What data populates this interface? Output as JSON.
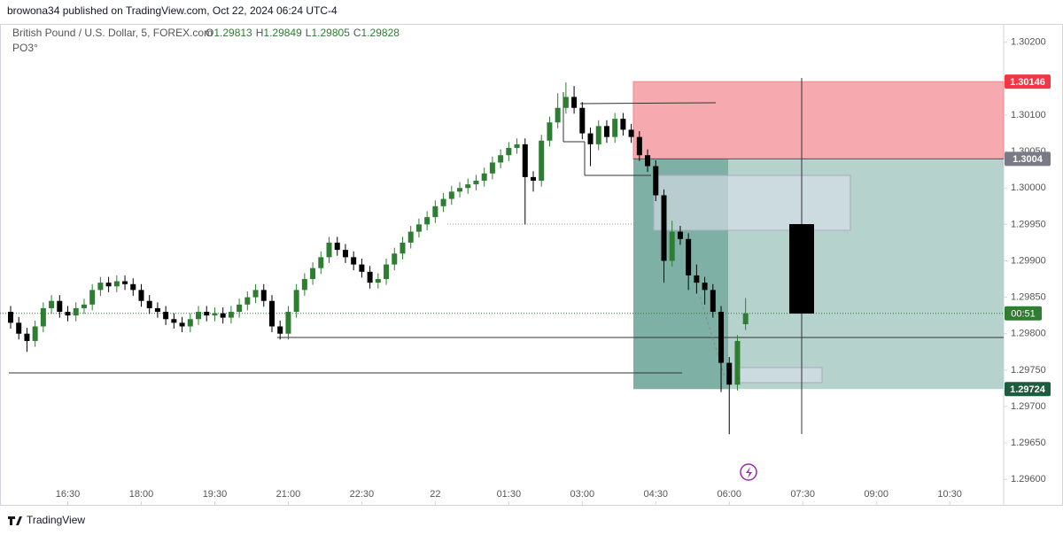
{
  "header": {
    "publisher": "browona34 published on TradingView.com, Oct 22, 2024 06:24 UTC-4",
    "brand": "TradingView"
  },
  "chart_data": {
    "type": "candlestick",
    "title": "British Pound / U.S. Dollar, 5, FOREX.com",
    "indicator": "PO3°",
    "ohlc_labels": [
      "O",
      "H",
      "L",
      "C"
    ],
    "countdown": "00:51",
    "up_color": "#2e7d32",
    "down_color": "#000000",
    "x": [
      0,
      1,
      2,
      3,
      4,
      5,
      6,
      7,
      8,
      9,
      10,
      11,
      12,
      13,
      14,
      15,
      16,
      17,
      18,
      19,
      20,
      21,
      22,
      23,
      24,
      25,
      26,
      27,
      28,
      29,
      30,
      31,
      32,
      33,
      34,
      35,
      36,
      37,
      38,
      39,
      40,
      41,
      42,
      43,
      44,
      45,
      46,
      47,
      48,
      49,
      50,
      51,
      52,
      53,
      54,
      55,
      56,
      57,
      58,
      59,
      60,
      61,
      62,
      63,
      64,
      65,
      66,
      67,
      68,
      69,
      70,
      71,
      72,
      73,
      74,
      75,
      76,
      77,
      78,
      79,
      80,
      81,
      82,
      83,
      84,
      85,
      86,
      87,
      88,
      89,
      90
    ],
    "open": [
      1.2983,
      1.29815,
      1.298,
      1.2979,
      1.2981,
      1.29835,
      1.29845,
      1.2983,
      1.29825,
      1.29835,
      1.2984,
      1.2986,
      1.2987,
      1.29865,
      1.29872,
      1.29868,
      1.2986,
      1.29845,
      1.29835,
      1.2983,
      1.2982,
      1.29815,
      1.2981,
      1.2982,
      1.2983,
      1.29825,
      1.29828,
      1.29822,
      1.2983,
      1.2984,
      1.2985,
      1.2986,
      1.29845,
      1.2981,
      1.298,
      1.2983,
      1.2986,
      1.29875,
      1.2989,
      1.29905,
      1.29925,
      1.29915,
      1.29905,
      1.29895,
      1.29885,
      1.2987,
      1.29875,
      1.29895,
      1.2991,
      1.29925,
      1.2994,
      1.2995,
      1.2996,
      1.29975,
      1.29985,
      1.29995,
      1.3,
      1.30005,
      1.3001,
      1.3002,
      1.30035,
      1.30045,
      1.30055,
      1.3006,
      1.30015,
      1.3001,
      1.30065,
      1.3009,
      1.3011,
      1.30125,
      1.3011,
      1.30075,
      1.3006,
      1.30085,
      1.3007,
      1.30095,
      1.3008,
      1.3007,
      1.30045,
      1.3003,
      1.2999,
      1.299,
      1.2994,
      1.2993,
      1.2988,
      1.2987,
      1.2986,
      1.2983,
      1.2976,
      1.2973,
      1.29813
    ],
    "high": [
      1.29838,
      1.29823,
      1.29808,
      1.29818,
      1.29843,
      1.29853,
      1.29853,
      1.29838,
      1.29843,
      1.29848,
      1.29868,
      1.29878,
      1.29878,
      1.2988,
      1.2988,
      1.29876,
      1.29868,
      1.29853,
      1.29843,
      1.29838,
      1.29828,
      1.29823,
      1.29828,
      1.29838,
      1.29838,
      1.29836,
      1.29836,
      1.29838,
      1.29848,
      1.29858,
      1.29868,
      1.29868,
      1.29853,
      1.29818,
      1.29838,
      1.29868,
      1.29883,
      1.29898,
      1.29913,
      1.29933,
      1.29933,
      1.29923,
      1.29913,
      1.29903,
      1.29893,
      1.29883,
      1.29903,
      1.29918,
      1.29933,
      1.29948,
      1.29958,
      1.29968,
      1.29983,
      1.29993,
      1.30003,
      1.30008,
      1.30013,
      1.30018,
      1.30028,
      1.30043,
      1.30053,
      1.30063,
      1.30068,
      1.30068,
      1.30023,
      1.30073,
      1.30098,
      1.3013,
      1.30145,
      1.3014,
      1.30118,
      1.30083,
      1.30093,
      1.30093,
      1.30103,
      1.30103,
      1.30088,
      1.30078,
      1.30053,
      1.30038,
      1.29998,
      1.29955,
      1.29948,
      1.29938,
      1.29895,
      1.29878,
      1.29868,
      1.29838,
      1.29768,
      1.29798,
      1.29849
    ],
    "low": [
      1.29807,
      1.29792,
      1.29775,
      1.29782,
      1.29802,
      1.29827,
      1.29822,
      1.29817,
      1.29817,
      1.29827,
      1.29832,
      1.29852,
      1.29857,
      1.29857,
      1.2986,
      1.29852,
      1.29837,
      1.29827,
      1.29822,
      1.29812,
      1.29807,
      1.29802,
      1.29802,
      1.29812,
      1.29817,
      1.29817,
      1.29814,
      1.29814,
      1.29822,
      1.29832,
      1.29842,
      1.29837,
      1.29802,
      1.29792,
      1.29792,
      1.29822,
      1.29852,
      1.29867,
      1.29882,
      1.29897,
      1.29907,
      1.29897,
      1.29887,
      1.29877,
      1.29862,
      1.29862,
      1.29867,
      1.29887,
      1.29902,
      1.29917,
      1.29932,
      1.29942,
      1.29952,
      1.29967,
      1.29977,
      1.29987,
      1.29992,
      1.29997,
      1.30002,
      1.30012,
      1.30027,
      1.30037,
      1.30047,
      1.2995,
      1.29995,
      1.30002,
      1.30057,
      1.30082,
      1.30102,
      1.30102,
      1.30067,
      1.3003,
      1.30052,
      1.30062,
      1.30062,
      1.30072,
      1.30062,
      1.30037,
      1.30022,
      1.29982,
      1.2987,
      1.29892,
      1.29922,
      1.2986,
      1.29855,
      1.2984,
      1.29822,
      1.2972,
      1.29662,
      1.29722,
      1.29805
    ],
    "close": [
      1.29815,
      1.298,
      1.2979,
      1.2981,
      1.29835,
      1.29845,
      1.2983,
      1.29825,
      1.29835,
      1.2984,
      1.2986,
      1.2987,
      1.29865,
      1.29872,
      1.29868,
      1.2986,
      1.29845,
      1.29835,
      1.2983,
      1.2982,
      1.29815,
      1.2981,
      1.2982,
      1.2983,
      1.29825,
      1.29828,
      1.29822,
      1.2983,
      1.2984,
      1.2985,
      1.2986,
      1.29845,
      1.2981,
      1.298,
      1.2983,
      1.2986,
      1.29875,
      1.2989,
      1.29905,
      1.29925,
      1.29915,
      1.29905,
      1.29895,
      1.29885,
      1.2987,
      1.29875,
      1.29895,
      1.2991,
      1.29925,
      1.2994,
      1.2995,
      1.2996,
      1.29975,
      1.29985,
      1.29995,
      1.3,
      1.30005,
      1.3001,
      1.3002,
      1.30035,
      1.30045,
      1.30055,
      1.3006,
      1.30015,
      1.3001,
      1.30065,
      1.3009,
      1.3011,
      1.30125,
      1.3011,
      1.30075,
      1.3006,
      1.30085,
      1.3007,
      1.30095,
      1.3008,
      1.3007,
      1.30045,
      1.3003,
      1.2999,
      1.299,
      1.2994,
      1.2993,
      1.2988,
      1.2987,
      1.2986,
      1.2983,
      1.2976,
      1.2973,
      1.2979,
      1.29828
    ],
    "xlim": [
      -1.3,
      121.6
    ],
    "xticks": [
      {
        "value": 7,
        "label": "16:30"
      },
      {
        "value": 16,
        "label": "18:00"
      },
      {
        "value": 25,
        "label": "19:30"
      },
      {
        "value": 34,
        "label": "21:00"
      },
      {
        "value": 43,
        "label": "22:30"
      },
      {
        "value": 52,
        "label": "22"
      },
      {
        "value": 61,
        "label": "01:30"
      },
      {
        "value": 70,
        "label": "03:00"
      },
      {
        "value": 79,
        "label": "04:30"
      },
      {
        "value": 88,
        "label": "06:00"
      },
      {
        "value": 97,
        "label": "07:30"
      },
      {
        "value": 106,
        "label": "09:00"
      },
      {
        "value": 115,
        "label": "10:30"
      }
    ],
    "ylim": [
      1.29565,
      1.30224
    ],
    "yticks": [
      {
        "value": 1.296,
        "label": "1.29600"
      },
      {
        "value": 1.2965,
        "label": "1.29650"
      },
      {
        "value": 1.297,
        "label": "1.29700"
      },
      {
        "value": 1.2975,
        "label": "1.29750"
      },
      {
        "value": 1.298,
        "label": "1.29800"
      },
      {
        "value": 1.2985,
        "label": "1.29850"
      },
      {
        "value": 1.299,
        "label": "1.29900"
      },
      {
        "value": 1.2995,
        "label": "1.29950"
      },
      {
        "value": 1.3,
        "label": "1.30000"
      },
      {
        "value": 1.3005,
        "label": "1.30050"
      },
      {
        "value": 1.301,
        "label": "1.30100"
      },
      {
        "value": 1.3015,
        "label": "1.30150"
      },
      {
        "value": 1.302,
        "label": "1.30200"
      }
    ],
    "position": {
      "stop": 1.30146,
      "entry": 1.3004,
      "target": 1.29724,
      "stop_color": "#f23645",
      "entry_color": "#787b86",
      "target_color": "#1e5b3f"
    }
  }
}
